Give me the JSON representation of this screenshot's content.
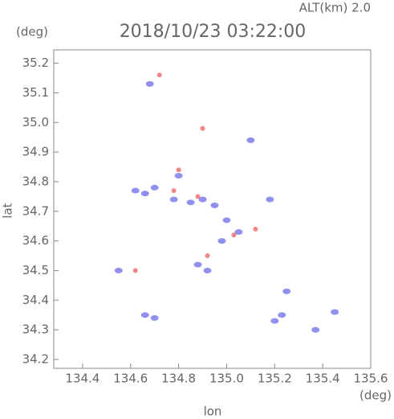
{
  "chart_data": {
    "type": "scatter",
    "title": "2018/10/23 03:22:00",
    "subtitle": "ALT(km) 2.0",
    "x_label": "lon",
    "y_label": "lat",
    "x_unit": "(deg)",
    "y_unit": "(deg)",
    "xlim": [
      134.28,
      135.6
    ],
    "ylim": [
      34.17,
      35.245
    ],
    "xticks": [
      134.4,
      134.6,
      134.8,
      {
        "value": 135.0,
        "label": "135.0"
      },
      135.2,
      135.4,
      135.6
    ],
    "yticks": [
      34.2,
      34.3,
      34.4,
      34.5,
      34.6,
      34.7,
      34.8,
      34.9,
      {
        "value": 35.0,
        "label": "35.0"
      },
      35.1,
      35.2
    ],
    "series": [
      {
        "color": "#7d7deb",
        "x": [
          134.62,
          134.66,
          134.7,
          134.78,
          134.85,
          134.9,
          134.95,
          135.0,
          135.05,
          134.92,
          134.88,
          134.68,
          134.66,
          134.7,
          135.2,
          135.23,
          135.1,
          135.18,
          135.37,
          135.45,
          134.98,
          134.8,
          135.25,
          134.55
        ],
        "values": [
          34.77,
          34.76,
          34.78,
          34.74,
          34.73,
          34.74,
          34.72,
          34.67,
          34.63,
          34.5,
          34.52,
          35.13,
          34.35,
          34.34,
          34.33,
          34.35,
          34.94,
          34.74,
          34.3,
          34.36,
          34.6,
          34.82,
          34.43,
          34.5
        ]
      },
      {
        "color": "#f07070",
        "x": [
          134.72,
          134.9,
          134.78,
          134.88,
          135.03,
          134.92,
          134.62,
          135.12,
          134.8
        ],
        "values": [
          35.16,
          34.98,
          34.77,
          34.75,
          34.62,
          34.55,
          34.5,
          34.64,
          34.84
        ]
      }
    ]
  }
}
